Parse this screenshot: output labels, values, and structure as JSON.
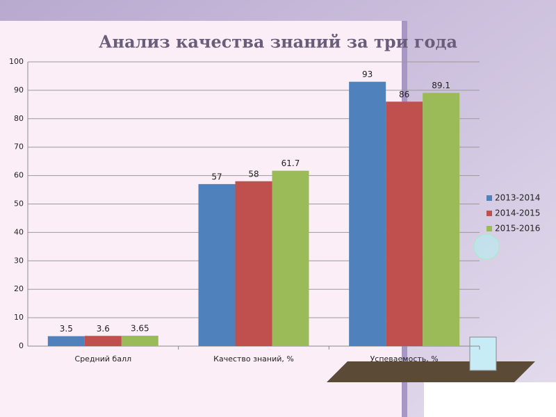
{
  "chart_data": {
    "type": "bar",
    "title": "Анализ качества знаний за три года",
    "categories": [
      "Средний балл",
      "Качество знаний, %",
      "Успеваемость, %"
    ],
    "series": [
      {
        "name": "2013-2014",
        "color": "#4f81bd",
        "values": [
          3.5,
          57,
          93
        ]
      },
      {
        "name": "2014-2015",
        "color": "#c0504d",
        "values": [
          3.6,
          58,
          86
        ]
      },
      {
        "name": "2015-2016",
        "color": "#9bbb59",
        "values": [
          3.65,
          61.7,
          89.1
        ]
      }
    ],
    "ylim": [
      0,
      100
    ],
    "yticks": [
      0,
      10,
      20,
      30,
      40,
      50,
      60,
      70,
      80,
      90,
      100
    ],
    "grid": true,
    "legend": "right"
  }
}
